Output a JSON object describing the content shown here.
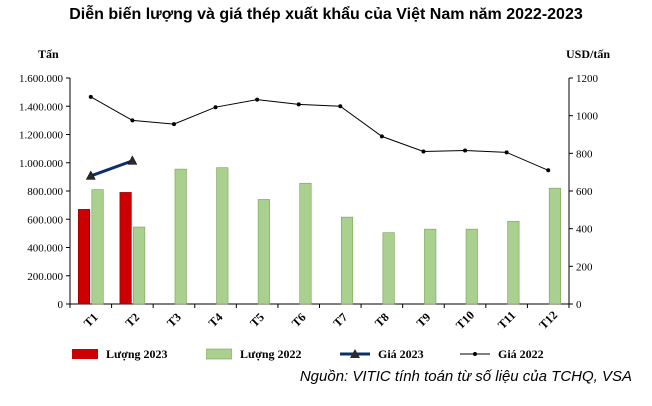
{
  "chart_data": {
    "type": "bar",
    "title": "Diễn biến lượng và giá thép xuất khẩu của Việt Nam năm 2022-2023",
    "ylabel_left": "Tấn",
    "ylabel_right": "USD/tấn",
    "categories": [
      "T1",
      "T2",
      "T3",
      "T4",
      "T5",
      "T6",
      "T7",
      "T8",
      "T9",
      "T10",
      "T11",
      "T12"
    ],
    "ylim_left": [
      0,
      1600000
    ],
    "ylim_right": [
      0,
      1200
    ],
    "yticks_left": [
      "0",
      "200.000",
      "400.000",
      "600.000",
      "800.000",
      "1.000.000",
      "1.200.000",
      "1.400.000",
      "1.600.000"
    ],
    "yticks_right": [
      "0",
      "200",
      "400",
      "600",
      "800",
      "1000",
      "1200"
    ],
    "series": [
      {
        "name": "Lượng 2023",
        "kind": "bar",
        "axis": "left",
        "color": "#cc0000",
        "values": [
          670000,
          790000,
          null,
          null,
          null,
          null,
          null,
          null,
          null,
          null,
          null,
          null
        ]
      },
      {
        "name": "Lượng 2022",
        "kind": "bar",
        "axis": "left",
        "color": "#a9d08e",
        "values": [
          810000,
          545000,
          955000,
          965000,
          740000,
          855000,
          615000,
          505000,
          530000,
          530000,
          585000,
          820000
        ]
      },
      {
        "name": "Giá 2023",
        "kind": "line",
        "axis": "right",
        "color": "#0b2f6b",
        "values": [
          680,
          760,
          null,
          null,
          null,
          null,
          null,
          null,
          null,
          null,
          null,
          null
        ]
      },
      {
        "name": "Giá 2022",
        "kind": "line",
        "axis": "right",
        "color": "#000000",
        "values": [
          1100,
          975,
          955,
          1045,
          1085,
          1060,
          1050,
          890,
          810,
          815,
          805,
          710
        ]
      }
    ]
  },
  "source_note": "Nguồn: VITIC tính toán từ số liệu của TCHQ, VSA"
}
